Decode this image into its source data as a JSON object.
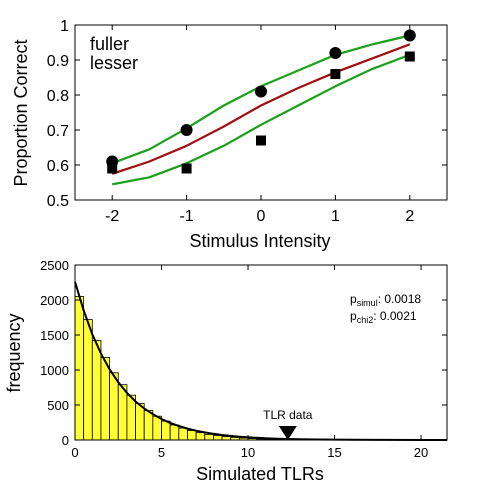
{
  "chart_data": [
    {
      "type": "line",
      "xlabel": "Stimulus Intensity",
      "ylabel": "Proportion Correct",
      "xlim": [
        -2.5,
        2.5
      ],
      "ylim": [
        0.5,
        1.0
      ],
      "xticks": [
        -2,
        -1,
        0,
        1,
        2
      ],
      "xtick_labels": [
        "-2",
        "-1",
        "0",
        "1",
        "2"
      ],
      "yticks": [
        0.5,
        0.6,
        0.7,
        0.8,
        0.9,
        1.0
      ],
      "ytick_labels": [
        "0.5",
        "0.6",
        "0.7",
        "0.8",
        "0.9",
        "1"
      ],
      "legend": {
        "placement": "top-left",
        "entries": [
          {
            "label": "fuller",
            "color": "#1aa11a"
          },
          {
            "label": "lesser",
            "color": "#a01010"
          }
        ]
      },
      "series": [
        {
          "name": "fuller",
          "kind": "scatter",
          "marker": "circle",
          "color": "#000000",
          "x": [
            -2,
            -1,
            0,
            1,
            2
          ],
          "y": [
            0.61,
            0.7,
            0.81,
            0.92,
            0.97
          ]
        },
        {
          "name": "lesser",
          "kind": "scatter",
          "marker": "square",
          "color": "#000000",
          "x": [
            -2,
            -1,
            0,
            1,
            2
          ],
          "y": [
            0.59,
            0.59,
            0.67,
            0.86,
            0.91
          ]
        },
        {
          "kind": "line",
          "color": "#1aa11a",
          "x": [
            -2,
            -1.5,
            -1,
            -0.5,
            0,
            0.5,
            1,
            1.5,
            2
          ],
          "y": [
            0.605,
            0.645,
            0.705,
            0.77,
            0.825,
            0.87,
            0.915,
            0.945,
            0.97
          ]
        },
        {
          "kind": "line",
          "color": "#a01010",
          "x": [
            -2,
            -1.5,
            -1,
            -0.5,
            0,
            0.5,
            1,
            1.5,
            2
          ],
          "y": [
            0.575,
            0.61,
            0.655,
            0.71,
            0.77,
            0.82,
            0.865,
            0.905,
            0.945
          ]
        },
        {
          "kind": "line",
          "color": "#1aa11a",
          "x": [
            -2,
            -1.5,
            -1,
            -0.5,
            0,
            0.5,
            1,
            1.5,
            2
          ],
          "y": [
            0.545,
            0.565,
            0.605,
            0.655,
            0.715,
            0.77,
            0.825,
            0.875,
            0.915
          ]
        }
      ]
    },
    {
      "type": "bar",
      "xlabel": "Simulated TLRs",
      "ylabel": "frequency",
      "xlim": [
        0,
        21.5
      ],
      "ylim": [
        0,
        2500
      ],
      "xticks": [
        0,
        5,
        10,
        15,
        20
      ],
      "xtick_labels": [
        "0",
        "5",
        "10",
        "15",
        "20"
      ],
      "yticks": [
        0,
        500,
        1000,
        1500,
        2000,
        2500
      ],
      "ytick_labels": [
        "0",
        "500",
        "1000",
        "1500",
        "2000",
        "2500"
      ],
      "bar_color": "#ffff33",
      "bin_width": 0.5,
      "bin_starts": [
        0,
        0.5,
        1,
        1.5,
        2,
        2.5,
        3,
        3.5,
        4,
        4.5,
        5,
        5.5,
        6,
        6.5,
        7,
        7.5,
        8,
        8.5,
        9,
        9.5,
        10,
        10.5,
        11,
        11.5,
        12
      ],
      "values": [
        2050,
        1720,
        1420,
        1180,
        960,
        790,
        640,
        520,
        420,
        340,
        270,
        215,
        170,
        135,
        105,
        80,
        62,
        48,
        36,
        27,
        20,
        14,
        10,
        7,
        5
      ],
      "fit_curve": {
        "color": "#000000",
        "x": [
          0,
          0.5,
          1,
          1.5,
          2,
          2.5,
          3,
          3.5,
          4,
          4.5,
          5,
          5.5,
          6,
          6.5,
          7,
          7.5,
          8,
          8.5,
          9,
          9.5,
          10,
          10.5,
          11,
          11.5,
          12,
          13,
          14,
          16,
          18,
          20,
          21.5
        ],
        "y": [
          2260,
          1850,
          1510,
          1235,
          1010,
          825,
          675,
          550,
          450,
          368,
          300,
          245,
          200,
          163,
          133,
          108,
          88,
          72,
          58,
          47,
          38,
          31,
          25,
          20,
          16,
          11,
          7,
          3,
          1,
          0,
          0
        ]
      },
      "marker": {
        "label": "TLR data",
        "x": 12.3,
        "y": 0,
        "shape": "triangle-down"
      },
      "annotations": [
        {
          "label_main": "p",
          "label_sub": "simul",
          "value": ": 0.0018"
        },
        {
          "label_main": "p",
          "label_sub": "chi2",
          "value": ": 0.0021"
        }
      ]
    }
  ]
}
